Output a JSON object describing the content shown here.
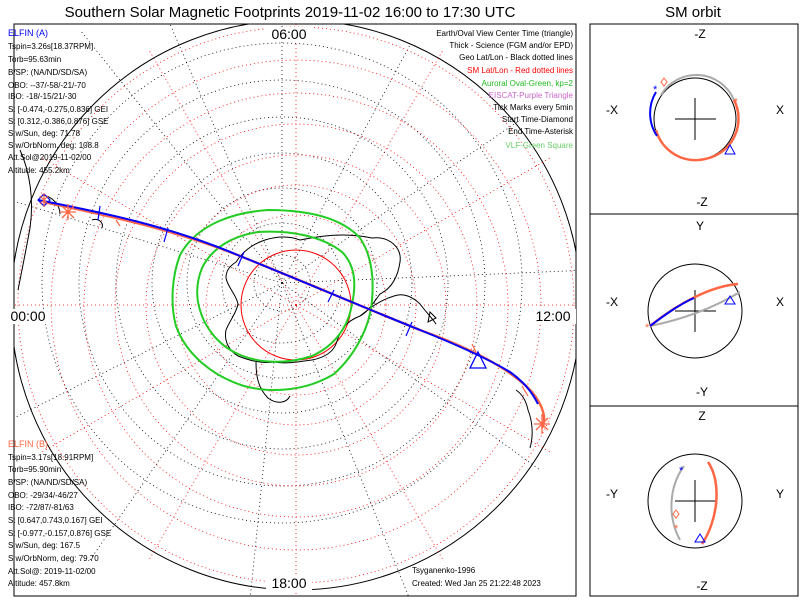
{
  "title": "Southern Solar Magnetic Footprints 2019-11-02 16:00 to 17:30 UTC",
  "orbit_title": "SM orbit",
  "mlt_labels": {
    "top": "06:00",
    "left": "00:00",
    "right": "12:00",
    "bottom": "18:00"
  },
  "legend": [
    {
      "text": "Earth/Oval View Center Time (triangle)",
      "color": "#000000"
    },
    {
      "text": "Thick - Science (FGM and/or EPD)",
      "color": "#000000"
    },
    {
      "text": "Geo Lat/Lon - Black dotted lines",
      "color": "#000000"
    },
    {
      "text": "SM Lat/Lon - Red dotted lines",
      "color": "#ff0000"
    },
    {
      "text": "Auroral Oval-Green, kp=2",
      "color": "#22bb22"
    },
    {
      "text": "EISCAT-Purple Triangle",
      "color": "#cc66cc"
    },
    {
      "text": "Tick Marks every 5min",
      "color": "#000000"
    },
    {
      "text": "Start Time-Diamond",
      "color": "#000000"
    },
    {
      "text": "End Time-Asterisk",
      "color": "#000000"
    },
    {
      "text": "VLF-Green Square",
      "color": "#66cc66"
    }
  ],
  "elfin_a": {
    "lines": [
      "ELFIN (A)",
      "Tspin=3.26s[18.37RPM]",
      "Torb=95.63min",
      "B/SP: (NA/ND/SD/SA)",
      "OBO: --37/-58/-21/-70",
      "IBO: -18/-15/21/-30",
      "S: [-0.474,-0.275,0.836] GEI",
      "S: [0.312,-0.386,0.876] GSE",
      "S w/Sun, deg: 71.78",
      "S w/OrbNorm, deg: 108.8",
      "Att.Sol@2019-11-02/00",
      "Altitude: 455.2km"
    ],
    "color": "#0000ff"
  },
  "elfin_b": {
    "lines": [
      "ELFIN (B)",
      "Tspin=3.17s[18.91RPM]",
      "Torb=95.90min",
      "B/SP: (NA/ND/SD/SA)",
      "OBO: -29/34/-46/27",
      "IBO: -72/87/-81/63",
      "S: [0.647,0.743,0.167] GEI",
      "S: [-0.977,-0.157,0.876] GSE",
      "S w/Sun, deg: 167.5",
      "S w/OrbNorm, deg: 79.70",
      "Att.Sol@: 2019-11-02/00",
      "Altitude: 457.8km"
    ],
    "color": "#ff6644"
  },
  "footer": {
    "author": "Tsyganenko-1996",
    "created": "Created: Wed Jan 25 21:22:48 2023"
  },
  "orbit_panels": [
    {
      "top": "-Z",
      "bottom": "-Z",
      "left": "-X",
      "right": "X"
    },
    {
      "top": "Y",
      "bottom": "-Y",
      "left": "-X",
      "right": "X"
    },
    {
      "top": "Z",
      "bottom": "-Z",
      "left": "-Y",
      "right": "Y"
    }
  ],
  "colors": {
    "probe_a": "#0000ff",
    "probe_b": "#ff6644",
    "oval": "#22cc22",
    "sm_grid": "#ff0000",
    "geo_grid": "#000000",
    "orbit_gray": "#aaaaaa"
  }
}
